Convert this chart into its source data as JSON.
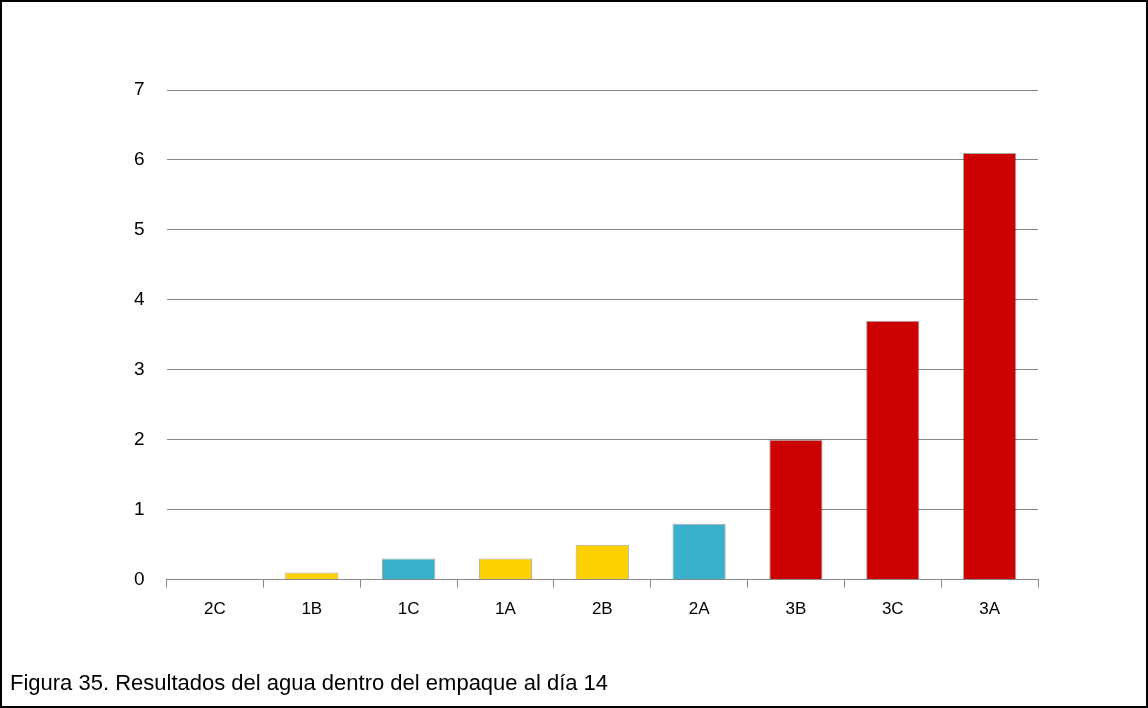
{
  "chart_data": {
    "type": "bar",
    "categories": [
      "2C",
      "1B",
      "1C",
      "1A",
      "2B",
      "2A",
      "3B",
      "3C",
      "3A"
    ],
    "values": [
      0,
      0.1,
      0.3,
      0.3,
      0.5,
      0.8,
      2.0,
      3.7,
      6.1
    ],
    "colors": [
      "#ffd000",
      "#ffd000",
      "#3ab0cc",
      "#ffd000",
      "#ffd000",
      "#3ab0cc",
      "#cc0000",
      "#cc0000",
      "#cc0000"
    ],
    "ylim": [
      0,
      7
    ],
    "yticks": [
      0,
      1,
      2,
      3,
      4,
      5,
      6,
      7
    ],
    "grid": "y",
    "legend": false,
    "annotations": [
      "Figura 35. Resultados del agua dentro del empaque al día 14"
    ]
  }
}
